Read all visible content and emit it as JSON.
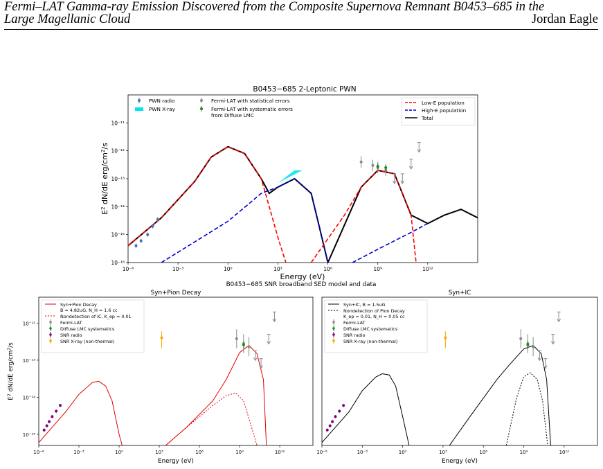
{
  "header": {
    "title_line1": "Fermi–LAT Gamma-ray Emission Discovered from the Composite Supernova Remnant B0453–685 in the",
    "title_line2": "Large Magellanic Cloud",
    "author": "Jordan Eagle"
  },
  "figure": {
    "caption_between": "B0453−685 SNR broadband SED model and data"
  },
  "chart_data": [
    {
      "type": "line",
      "title": "B0453−685 2-Leptonic PWN",
      "xlabel": "Energy (eV)",
      "ylabel": "E² dN/dE erg/cm²/s",
      "xscale": "log",
      "yscale": "log",
      "xlim": [
        1e-06,
        1000000000000000.0
      ],
      "ylim": [
        1e-16,
        1e-10
      ],
      "x_ticks": [
        "10⁻⁶",
        "10⁻³",
        "10⁰",
        "10³",
        "10⁶",
        "10⁹",
        "10¹²"
      ],
      "y_ticks": [
        "10⁻¹⁶",
        "10⁻¹⁵",
        "10⁻¹⁴",
        "10⁻¹³",
        "10⁻¹²",
        "10⁻¹¹"
      ],
      "legend": [
        {
          "label": "PWN radio",
          "kind": "errorbar",
          "color": "#4a6fb5"
        },
        {
          "label": "PWN X-ray",
          "kind": "band",
          "color": "#00e5ee"
        },
        {
          "label": "Fermi-LAT with statistical errors",
          "kind": "errorbar",
          "color": "#888888"
        },
        {
          "label": "Fermi-LAT with systematic errors from Diffuse LMC",
          "kind": "errorbar",
          "color": "#1a8a1a"
        }
      ],
      "legend2": [
        {
          "label": "Low-E population",
          "color": "#ff0000",
          "dash": "6,3"
        },
        {
          "label": "High-E population",
          "color": "#0000cc",
          "dash": "6,3"
        },
        {
          "label": "Total",
          "color": "#000000",
          "dash": ""
        }
      ],
      "series": [
        {
          "name": "Total",
          "color": "#000000",
          "dash": "",
          "width": 2,
          "points": [
            [
              1e-06,
              4e-16
            ],
            [
              0.0001,
              4e-15
            ],
            [
              0.01,
              8e-14
            ],
            [
              0.1,
              6e-13
            ],
            [
              1,
              1.4e-12
            ],
            [
              10,
              8e-13
            ],
            [
              100,
              1e-13
            ],
            [
              300,
              3e-14
            ],
            [
              1000,
              5e-14
            ],
            [
              10000.0,
              1e-13
            ],
            [
              100000.0,
              3e-14
            ],
            [
              300000.0,
              2e-15
            ],
            [
              1000000.0,
              1e-16
            ],
            [
              100000000.0,
              5e-14
            ],
            [
              1000000000.0,
              2e-13
            ],
            [
              10000000000.0,
              1.5e-13
            ],
            [
              100000000000.0,
              5e-15
            ],
            [
              1000000000000.0,
              2.5e-15
            ],
            [
              10000000000000.0,
              5e-15
            ],
            [
              100000000000000.0,
              8e-15
            ],
            [
              1000000000000000.0,
              4e-15
            ]
          ]
        },
        {
          "name": "Low-E population",
          "color": "#ff0000",
          "dash": "6,3",
          "width": 1.6,
          "points": [
            [
              1e-06,
              4e-16
            ],
            [
              0.0001,
              4e-15
            ],
            [
              0.01,
              8e-14
            ],
            [
              0.1,
              6e-13
            ],
            [
              1,
              1.4e-12
            ],
            [
              10,
              8e-13
            ],
            [
              100,
              1e-13
            ],
            [
              300,
              1e-14
            ],
            [
              1000,
              8e-16
            ],
            [
              3000,
              1e-16
            ]
          ]
        },
        {
          "name": "High-E population",
          "color": "#0000cc",
          "dash": "6,3",
          "width": 1.6,
          "points": [
            [
              0.0001,
              1e-16
            ],
            [
              1,
              3e-15
            ],
            [
              100,
              3e-14
            ],
            [
              1000,
              5e-14
            ],
            [
              10000.0,
              1e-13
            ],
            [
              100000.0,
              3e-14
            ],
            [
              300000.0,
              2e-15
            ],
            [
              1000000.0,
              1e-16
            ]
          ]
        },
        {
          "name": "Low-E population (IC)",
          "color": "#ff0000",
          "dash": "6,3",
          "width": 1.6,
          "points": [
            [
              100000.0,
              1e-16
            ],
            [
              10000000.0,
              5e-15
            ],
            [
              100000000.0,
              5e-14
            ],
            [
              1000000000.0,
              2e-13
            ],
            [
              10000000000.0,
              1.5e-13
            ],
            [
              100000000000.0,
              5e-15
            ],
            [
              200000000000.0,
              1e-16
            ]
          ]
        },
        {
          "name": "High-E population (IC)",
          "color": "#0000cc",
          "dash": "6,3",
          "width": 1.6,
          "points": [
            [
              30000000.0,
              1e-16
            ],
            [
              1000000000.0,
              3e-16
            ],
            [
              100000000000.0,
              1.2e-15
            ],
            [
              1000000000000.0,
              2.5e-15
            ]
          ]
        }
      ],
      "xray_band": [
        [
          1000.0,
          7e-14
        ],
        [
          10000.0,
          2e-13
        ],
        [
          30000.0,
          2e-13
        ],
        [
          3000.0,
          1e-13
        ]
      ],
      "radio_points": [
        [
          3e-06,
          4e-16
        ],
        [
          6e-06,
          6e-16
        ],
        [
          1.5e-05,
          1e-15
        ],
        [
          3e-05,
          2e-15
        ],
        [
          6e-05,
          3.5e-15
        ]
      ],
      "fermi_points": [
        [
          100000000.0,
          4e-13
        ],
        [
          500000000.0,
          3e-13
        ],
        [
          1000000000.0,
          2.5e-13
        ],
        [
          3000000000.0,
          2e-13
        ],
        [
          10000000000.0,
          1.5e-13
        ],
        [
          30000000000.0,
          1.5e-13
        ],
        [
          100000000000.0,
          5e-13
        ],
        [
          300000000000.0,
          2e-12
        ]
      ],
      "fermi_sys_points": [
        [
          1000000000.0,
          2.8e-13
        ],
        [
          3000000000.0,
          2.5e-13
        ]
      ]
    },
    {
      "type": "line",
      "title": "Syn+Pion Decay",
      "xlabel": "Energy (eV)",
      "ylabel": "E² dN/dE erg/cm²/s",
      "xscale": "log",
      "yscale": "log",
      "xlim": [
        1e-06,
        100000000000000.0
      ],
      "ylim": [
        5e-16,
        5e-12
      ],
      "x_ticks": [
        "10⁻⁶",
        "10⁻³",
        "10⁰",
        "10³",
        "10⁶",
        "10⁹",
        "10¹²"
      ],
      "y_ticks": [
        "10⁻¹⁵",
        "10⁻¹⁴",
        "10⁻¹³",
        "10⁻¹²"
      ],
      "legend": [
        {
          "label": "Syn+Pion Decay",
          "sub": "B = 4.82uG, N_H = 1.6 cc",
          "kind": "line",
          "color": "#e00000",
          "dash": ""
        },
        {
          "label": "Nondetection of IC, K_ep = 0.01",
          "kind": "line",
          "color": "#e00000",
          "dash": "2,2"
        },
        {
          "label": "Fermi-LAT",
          "kind": "errorbar",
          "color": "#888888"
        },
        {
          "label": "Diffuse LMC systematics",
          "kind": "errorbar",
          "color": "#1a8a1a"
        },
        {
          "label": "SNR radio",
          "kind": "errorbar",
          "color": "#800080"
        },
        {
          "label": "SNR X-ray (non-thermal)",
          "kind": "errorbar",
          "color": "#ffa500"
        }
      ]
    },
    {
      "type": "line",
      "title": "Syn+IC",
      "xlabel": "Energy (eV)",
      "ylabel": "",
      "xscale": "log",
      "yscale": "log",
      "xlim": [
        1e-06,
        100000000000000.0
      ],
      "ylim": [
        5e-16,
        5e-12
      ],
      "x_ticks": [
        "10⁻⁶",
        "10⁻³",
        "10⁰",
        "10³",
        "10⁶",
        "10⁹",
        "10¹²"
      ],
      "legend": [
        {
          "label": "Syn+IC, B = 1.5uG",
          "kind": "line",
          "color": "#000000",
          "dash": ""
        },
        {
          "label": "Nondetection of Pion Decay",
          "sub": "K_ep = 0.01, N_H = 0.05 cc",
          "kind": "line",
          "color": "#000000",
          "dash": "2,2"
        },
        {
          "label": "Fermi-LAT",
          "kind": "errorbar",
          "color": "#888888"
        },
        {
          "label": "Diffuse LMC systematics",
          "kind": "errorbar",
          "color": "#1a8a1a"
        },
        {
          "label": "SNR radio",
          "kind": "errorbar",
          "color": "#800080"
        },
        {
          "label": "SNR X-ray (non-thermal)",
          "kind": "errorbar",
          "color": "#ffa500"
        }
      ]
    }
  ]
}
